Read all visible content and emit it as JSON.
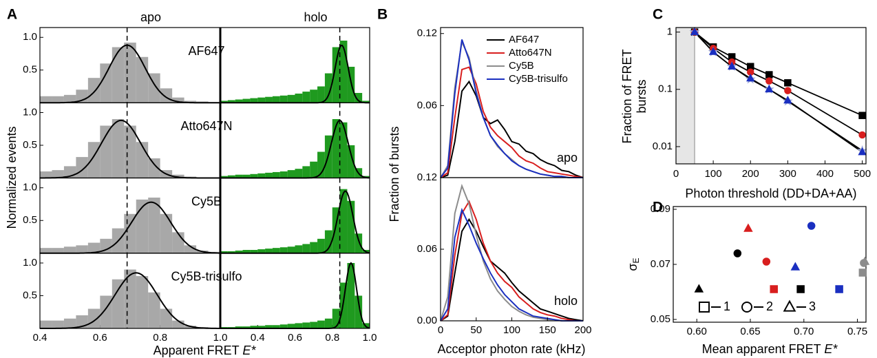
{
  "chart_data": [
    {
      "panel": "A",
      "type": "histogram",
      "ylabel": "Normalized events",
      "xlabel": "Apparent FRET",
      "xlabel_italic": "E*",
      "ylim": [
        0,
        1.15
      ],
      "yticks": [
        0.5,
        {
          "value": 1,
          "label": "1.0"
        }
      ],
      "segments": [
        {
          "name": "apo",
          "color": "#a8a8a8",
          "xlim": [
            0.4,
            1.0
          ],
          "xticks": [
            0.4,
            0.6,
            0.8,
            {
              "value": 1,
              "label": "1.0"
            }
          ],
          "bins": [
            0.4,
            0.44,
            0.48,
            0.52,
            0.56,
            0.6,
            0.64,
            0.68,
            0.72,
            0.76,
            0.8,
            0.84,
            0.88,
            0.92,
            0.96,
            1.0
          ],
          "reference": 0.69
        },
        {
          "name": "holo",
          "color": "#1f9a1f",
          "xlim": [
            0.2,
            1.0
          ],
          "xticks": [
            0.4,
            0.6,
            0.8,
            {
              "value": 1,
              "label": "1.0"
            }
          ],
          "bins": [
            0.2,
            0.24,
            0.28,
            0.32,
            0.36,
            0.4,
            0.44,
            0.48,
            0.52,
            0.56,
            0.6,
            0.64,
            0.68,
            0.72,
            0.76,
            0.8,
            0.84,
            0.88,
            0.92,
            0.96,
            1.0
          ],
          "reference": 0.84
        }
      ],
      "rows": [
        {
          "name": "AF647",
          "counts": [
            [
              0.1,
              0.1,
              0.12,
              0.2,
              0.38,
              0.6,
              0.85,
              0.92,
              0.7,
              0.45,
              0.22,
              0.08,
              0.03,
              0.02,
              0.01
            ],
            [
              0.03,
              0.04,
              0.05,
              0.06,
              0.07,
              0.08,
              0.09,
              0.1,
              0.11,
              0.12,
              0.14,
              0.17,
              0.2,
              0.25,
              0.45,
              0.85,
              0.95,
              0.55,
              0.15,
              0.03
            ]
          ],
          "fits": [
            {
              "amp": 0.88,
              "mean": 0.69,
              "sd": 0.06
            },
            {
              "amp": 0.88,
              "mean": 0.85,
              "sd": 0.035
            }
          ]
        },
        {
          "name": "Atto647N",
          "counts": [
            [
              0.1,
              0.12,
              0.18,
              0.32,
              0.55,
              0.8,
              0.9,
              0.8,
              0.55,
              0.3,
              0.12,
              0.05,
              0.02,
              0.01,
              0.01
            ],
            [
              0.03,
              0.04,
              0.05,
              0.05,
              0.06,
              0.07,
              0.08,
              0.09,
              0.1,
              0.12,
              0.14,
              0.18,
              0.25,
              0.4,
              0.65,
              0.9,
              0.85,
              0.5,
              0.15,
              0.03
            ]
          ],
          "fits": [
            {
              "amp": 0.88,
              "mean": 0.67,
              "sd": 0.065
            },
            {
              "amp": 0.88,
              "mean": 0.84,
              "sd": 0.045
            }
          ]
        },
        {
          "name": "Cy5B",
          "counts": [
            [
              0.08,
              0.08,
              0.1,
              0.12,
              0.16,
              0.22,
              0.38,
              0.6,
              0.82,
              0.85,
              0.6,
              0.32,
              0.12,
              0.04,
              0.02
            ],
            [
              0.03,
              0.03,
              0.04,
              0.05,
              0.05,
              0.06,
              0.07,
              0.08,
              0.09,
              0.1,
              0.12,
              0.14,
              0.17,
              0.22,
              0.35,
              0.7,
              0.98,
              0.8,
              0.3,
              0.05
            ]
          ],
          "fits": [
            {
              "amp": 0.78,
              "mean": 0.77,
              "sd": 0.065
            },
            {
              "amp": 0.95,
              "mean": 0.87,
              "sd": 0.04
            }
          ]
        },
        {
          "name": "Cy5B-trisulfo",
          "counts": [
            [
              0.12,
              0.12,
              0.15,
              0.2,
              0.3,
              0.5,
              0.75,
              0.9,
              0.8,
              0.55,
              0.3,
              0.12,
              0.04,
              0.02,
              0.01
            ],
            [
              0.02,
              0.02,
              0.03,
              0.03,
              0.04,
              0.04,
              0.05,
              0.05,
              0.06,
              0.07,
              0.08,
              0.09,
              0.1,
              0.12,
              0.15,
              0.3,
              0.7,
              1.0,
              0.5,
              0.08
            ]
          ],
          "fits": [
            {
              "amp": 0.85,
              "mean": 0.72,
              "sd": 0.07
            },
            {
              "amp": 1.0,
              "mean": 0.9,
              "sd": 0.03
            }
          ]
        }
      ]
    },
    {
      "panel": "B",
      "type": "line",
      "ylabel": "Fraction of bursts",
      "xlabel": "Acceptor photon rate (kHz)",
      "legend": "upper right",
      "xlim": [
        0,
        200
      ],
      "xticks": [
        0,
        50,
        100,
        150,
        200
      ],
      "x": [
        0,
        10,
        20,
        30,
        40,
        50,
        60,
        70,
        80,
        90,
        100,
        110,
        120,
        130,
        140,
        150,
        160,
        170,
        180,
        190,
        200
      ],
      "series": [
        {
          "name": "AF647",
          "color": "#000000"
        },
        {
          "name": "Atto647N",
          "color": "#d81e1e"
        },
        {
          "name": "Cy5B",
          "color": "#8c8c8c"
        },
        {
          "name": "Cy5B-trisulfo",
          "color": "#1a2fc0"
        }
      ],
      "subplots": [
        {
          "label": "apo",
          "ylim": [
            0,
            0.125
          ],
          "yticks": [
            0.06,
            0.12
          ],
          "values": [
            [
              0,
              0.002,
              0.03,
              0.072,
              0.08,
              0.068,
              0.05,
              0.045,
              0.048,
              0.04,
              0.03,
              0.028,
              0.022,
              0.02,
              0.015,
              0.012,
              0.01,
              0.006,
              0.005,
              0.002,
              0
            ],
            [
              0,
              0.004,
              0.05,
              0.09,
              0.092,
              0.078,
              0.055,
              0.042,
              0.035,
              0.03,
              0.025,
              0.018,
              0.014,
              0.012,
              0.008,
              0.005,
              0.004,
              0.003,
              0.002,
              0.001,
              0
            ],
            [
              0,
              0.01,
              0.075,
              0.113,
              0.1,
              0.072,
              0.05,
              0.035,
              0.026,
              0.02,
              0.015,
              0.01,
              0.007,
              0.005,
              0.003,
              0.002,
              0.001,
              0.001,
              0,
              0,
              0
            ],
            [
              0,
              0.008,
              0.07,
              0.115,
              0.098,
              0.07,
              0.05,
              0.035,
              0.027,
              0.02,
              0.014,
              0.01,
              0.007,
              0.005,
              0.003,
              0.002,
              0.001,
              0.001,
              0,
              0,
              0
            ]
          ]
        },
        {
          "label": "holo",
          "ylim": [
            0,
            0.12
          ],
          "yticks": [
            {
              "value": 0,
              "label": "0.00"
            },
            0.06,
            0.12
          ],
          "values": [
            [
              0,
              0.004,
              0.04,
              0.075,
              0.085,
              0.075,
              0.062,
              0.05,
              0.045,
              0.04,
              0.032,
              0.025,
              0.02,
              0.015,
              0.01,
              0.008,
              0.006,
              0.004,
              0.002,
              0.001,
              0
            ],
            [
              0,
              0.005,
              0.055,
              0.09,
              0.1,
              0.085,
              0.065,
              0.05,
              0.04,
              0.033,
              0.028,
              0.02,
              0.015,
              0.01,
              0.007,
              0.005,
              0.004,
              0.002,
              0.001,
              0,
              0
            ],
            [
              0,
              0.02,
              0.09,
              0.113,
              0.098,
              0.072,
              0.05,
              0.035,
              0.025,
              0.018,
              0.012,
              0.008,
              0.005,
              0.003,
              0.002,
              0.001,
              0.001,
              0,
              0,
              0,
              0
            ],
            [
              0,
              0.01,
              0.07,
              0.093,
              0.08,
              0.065,
              0.052,
              0.04,
              0.03,
              0.022,
              0.016,
              0.01,
              0.007,
              0.004,
              0.003,
              0.002,
              0.001,
              0,
              0,
              0,
              0
            ]
          ]
        }
      ]
    },
    {
      "panel": "C",
      "type": "line",
      "log_y": true,
      "ylabel": [
        "Fraction of FRET",
        "bursts"
      ],
      "xlabel": "Photon threshold (DD+DA+AA)",
      "xlim": [
        0,
        510
      ],
      "xticks": [
        0,
        100,
        200,
        300,
        400,
        500
      ],
      "ylim": [
        0.005,
        1.2
      ],
      "yticks": [
        0.01,
        0.1,
        1
      ],
      "shade": [
        0,
        50
      ],
      "x": [
        50,
        100,
        150,
        200,
        250,
        300,
        500
      ],
      "series": [
        {
          "marker": "square",
          "color": "#000000",
          "line_color": "#000000",
          "values": [
            1,
            0.55,
            0.37,
            0.25,
            0.18,
            0.13,
            0.035
          ]
        },
        {
          "marker": "circle",
          "color": "#d81e1e",
          "line_color": "#000000",
          "values": [
            1,
            0.52,
            0.3,
            0.2,
            0.14,
            0.095,
            0.016
          ]
        },
        {
          "marker": "star",
          "color": "#9aa6d8",
          "line_color": "#000000",
          "values": [
            1,
            0.45,
            0.25,
            0.15,
            0.1,
            0.062,
            0.0085
          ]
        },
        {
          "marker": "triangle",
          "color": "#1a2fc0",
          "line_color": "#000000",
          "values": [
            1,
            0.45,
            0.25,
            0.155,
            0.1,
            0.064,
            0.008
          ]
        }
      ]
    },
    {
      "panel": "D",
      "type": "scatter",
      "xlabel": "Mean apparent FRET",
      "xlabel_italic": "E*",
      "ylabel": "σ",
      "ylabel_sub": "E",
      "legend": "lower center",
      "xlim": [
        0.578,
        0.758
      ],
      "xticks": [
        {
          "value": 0.6,
          "label": "0.60"
        },
        {
          "value": 0.65,
          "label": "0.65"
        },
        {
          "value": 0.7,
          "label": "0.70"
        },
        {
          "value": 0.75,
          "label": "0.75"
        }
      ],
      "ylim": [
        0.049,
        0.091
      ],
      "yticks": [
        0.05,
        0.07,
        0.09
      ],
      "series": [
        {
          "name": "1",
          "marker": "square",
          "x": [
            0.697,
            0.672,
            0.755,
            0.733
          ],
          "y": [
            0.061,
            0.061,
            0.067,
            0.061
          ],
          "colors": [
            "#000000",
            "#d81e1e",
            "#8c8c8c",
            "#1a2fc0"
          ]
        },
        {
          "name": "2",
          "marker": "circle",
          "x": [
            0.638,
            0.665,
            0.756,
            0.707
          ],
          "y": [
            0.074,
            0.071,
            0.0705,
            0.084
          ],
          "colors": [
            "#000000",
            "#d81e1e",
            "#8c8c8c",
            "#1a2fc0"
          ]
        },
        {
          "name": "3",
          "marker": "triangle",
          "x": [
            0.602,
            0.648,
            0.757,
            0.692
          ],
          "y": [
            0.061,
            0.083,
            0.071,
            0.069
          ],
          "colors": [
            "#000000",
            "#d81e1e",
            "#8c8c8c",
            "#1a2fc0"
          ]
        }
      ]
    }
  ]
}
